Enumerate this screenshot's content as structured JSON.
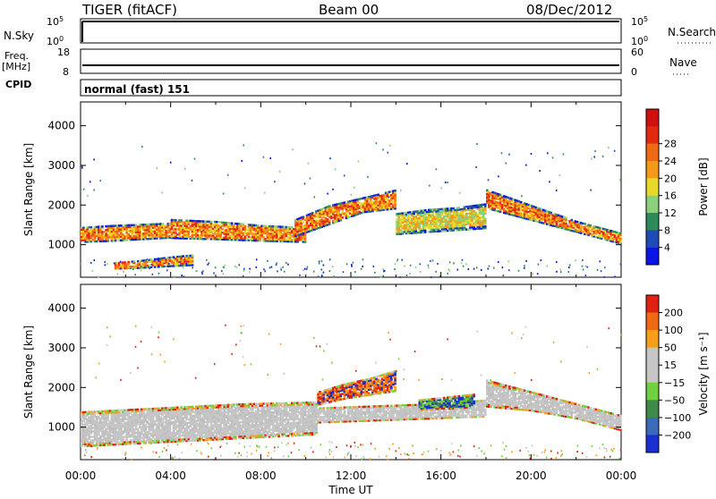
{
  "header": {
    "title": "TIGER (fitACF)",
    "beam": "Beam 00",
    "date": "08/Dec/2012"
  },
  "strip_panels": {
    "nsky": {
      "label": "N.Sky",
      "left_ticks": [
        "10^5",
        "10^0"
      ],
      "right_ticks": [
        "10^5",
        "10^0"
      ],
      "right_label": "N.Search"
    },
    "freq": {
      "label_lines": [
        "Freq.",
        "[MHz]"
      ],
      "left_ticks": [
        "18",
        "8"
      ],
      "right_ticks": [
        "60",
        "0"
      ],
      "right_label": "Nave"
    },
    "cpid": {
      "label": "CPID",
      "value": "normal (fast) 151"
    }
  },
  "chart_data": [
    {
      "type": "heatmap",
      "name": "Power",
      "ylabel": "Slant Range [km]",
      "xlabel": "",
      "ylim": [
        180,
        4600
      ],
      "yticks": [
        1000,
        2000,
        3000,
        4000
      ],
      "colorbar": {
        "label": "Power [dB]",
        "ticks": [
          "4",
          "8",
          "12",
          "16",
          "20",
          "24",
          "28"
        ],
        "colors": [
          "#0a14e6",
          "#1f4bb8",
          "#2f8a5a",
          "#8cd07a",
          "#e8d82a",
          "#f59a18",
          "#f06a14",
          "#e22a10",
          "#d01010"
        ]
      },
      "bands": [
        {
          "x0": 0.0,
          "x1": 4.0,
          "lower": [
            1050,
            1080,
            1120,
            1160
          ],
          "upper": [
            1450,
            1500,
            1530,
            1560
          ],
          "core": "orange"
        },
        {
          "x0": 1.5,
          "x1": 5.0,
          "lower": [
            380,
            400,
            440,
            470
          ],
          "upper": [
            560,
            620,
            700,
            760
          ],
          "core": "orange"
        },
        {
          "x0": 4.0,
          "x1": 10.0,
          "lower": [
            1150,
            1120,
            1080,
            1050
          ],
          "upper": [
            1650,
            1600,
            1500,
            1450
          ],
          "core": "orange"
        },
        {
          "x0": 9.5,
          "x1": 14.0,
          "lower": [
            1200,
            1500,
            1800,
            1900
          ],
          "upper": [
            1650,
            2000,
            2200,
            2400
          ],
          "core": "orange"
        },
        {
          "x0": 14.0,
          "x1": 18.0,
          "lower": [
            1250,
            1300,
            1350,
            1400
          ],
          "upper": [
            1800,
            1900,
            1950,
            2050
          ],
          "core": "yellow"
        },
        {
          "x0": 18.0,
          "x1": 24.0,
          "lower": [
            1900,
            1600,
            1300,
            1000
          ],
          "upper": [
            2400,
            2000,
            1600,
            1300
          ],
          "core": "orange"
        }
      ]
    },
    {
      "type": "heatmap",
      "name": "Velocity",
      "ylabel": "Slant Range [km]",
      "xlabel": "Time UT",
      "ylim": [
        180,
        4600
      ],
      "yticks": [
        1000,
        2000,
        3000,
        4000
      ],
      "xticks": [
        "00:00",
        "04:00",
        "08:00",
        "12:00",
        "16:00",
        "20:00",
        "00:00"
      ],
      "colorbar": {
        "label": "Velocity [m s^-1]",
        "ticks": [
          "200",
          "100",
          "50",
          "15",
          "-15",
          "-50",
          "-100",
          "-200"
        ],
        "colors": [
          "#1a2fd0",
          "#3a6ab8",
          "#3e8a4a",
          "#6fd040",
          "#c6c6c6",
          "#c6c6c6",
          "#f5a018",
          "#f06a14",
          "#e02010"
        ]
      },
      "bands": [
        {
          "x0": 0.0,
          "x1": 10.5,
          "lower": [
            500,
            600,
            700,
            800
          ],
          "upper": [
            1400,
            1500,
            1600,
            1650
          ],
          "core": "grey"
        },
        {
          "x0": 10.5,
          "x1": 14.0,
          "lower": [
            1550,
            1700,
            1800,
            1900
          ],
          "upper": [
            1900,
            2100,
            2250,
            2450
          ],
          "core": "red"
        },
        {
          "x0": 10.5,
          "x1": 18.0,
          "lower": [
            1100,
            1150,
            1200,
            1250
          ],
          "upper": [
            1500,
            1550,
            1600,
            1700
          ],
          "core": "grey"
        },
        {
          "x0": 15.0,
          "x1": 17.5,
          "lower": [
            1400,
            1450,
            1450,
            1500
          ],
          "upper": [
            1700,
            1750,
            1800,
            1850
          ],
          "core": "green"
        },
        {
          "x0": 18.0,
          "x1": 24.0,
          "lower": [
            1500,
            1400,
            1200,
            900
          ],
          "upper": [
            2200,
            1900,
            1600,
            1300
          ],
          "core": "grey"
        }
      ]
    }
  ]
}
